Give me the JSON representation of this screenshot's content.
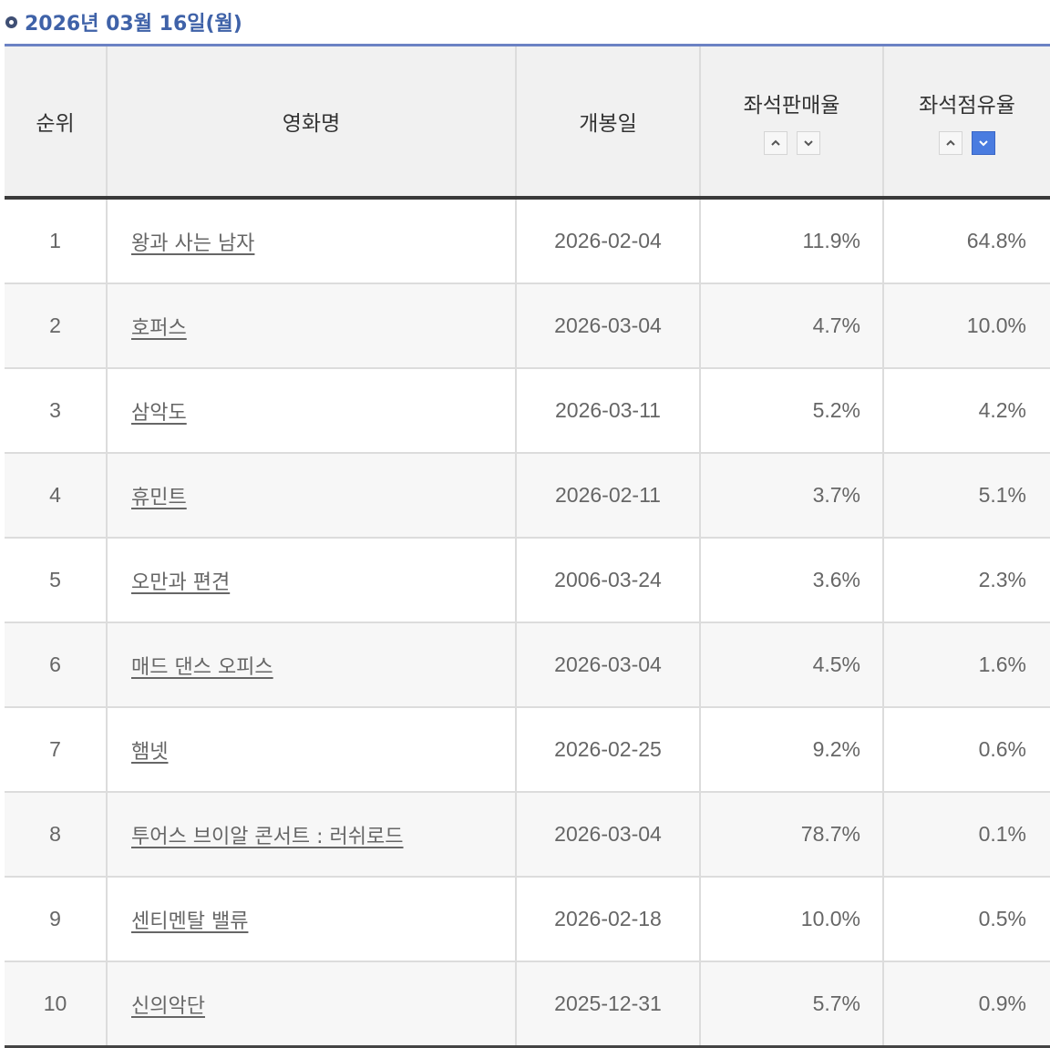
{
  "header": {
    "date": "2026년 03월 16일(월)"
  },
  "columns": {
    "rank": "순위",
    "title": "영화명",
    "release": "개봉일",
    "sales_rate": "좌석판매율",
    "share_rate": "좌석점유율"
  },
  "sort_icons": {
    "up": "chevron-up-icon",
    "down": "chevron-down-icon",
    "active_sort": "share_rate-desc",
    "active_color": "#4a7ce0"
  },
  "rows": [
    {
      "rank": "1",
      "title": "왕과 사는 남자",
      "release": "2026-02-04",
      "sales": "11.9%",
      "share": "64.8%"
    },
    {
      "rank": "2",
      "title": "호퍼스",
      "release": "2026-03-04",
      "sales": "4.7%",
      "share": "10.0%"
    },
    {
      "rank": "3",
      "title": "삼악도",
      "release": "2026-03-11",
      "sales": "5.2%",
      "share": "4.2%"
    },
    {
      "rank": "4",
      "title": "휴민트",
      "release": "2026-02-11",
      "sales": "3.7%",
      "share": "5.1%"
    },
    {
      "rank": "5",
      "title": "오만과 편견",
      "release": "2006-03-24",
      "sales": "3.6%",
      "share": "2.3%"
    },
    {
      "rank": "6",
      "title": "매드 댄스 오피스",
      "release": "2026-03-04",
      "sales": "4.5%",
      "share": "1.6%"
    },
    {
      "rank": "7",
      "title": "햄넷",
      "release": "2026-02-25",
      "sales": "9.2%",
      "share": "0.6%"
    },
    {
      "rank": "8",
      "title": "투어스 브이알 콘서트 : 러쉬로드",
      "release": "2026-03-04",
      "sales": "78.7%",
      "share": "0.1%"
    },
    {
      "rank": "9",
      "title": "센티멘탈 밸류",
      "release": "2026-02-18",
      "sales": "10.0%",
      "share": "0.5%"
    },
    {
      "rank": "10",
      "title": "신의악단",
      "release": "2025-12-31",
      "sales": "5.7%",
      "share": "0.9%"
    }
  ]
}
